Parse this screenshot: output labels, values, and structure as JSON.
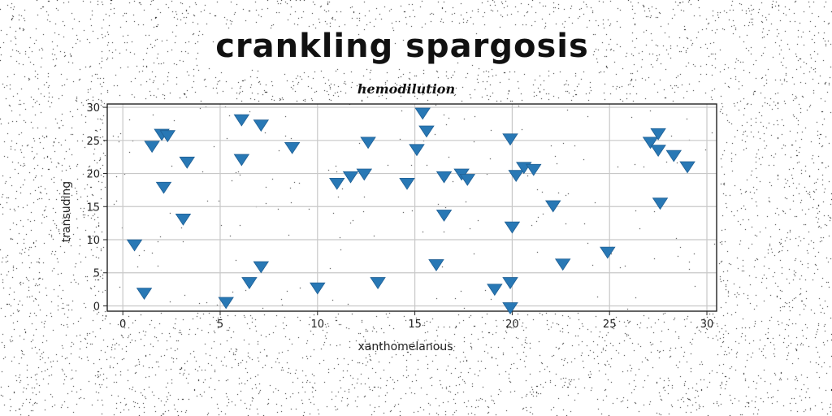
{
  "chart_data": {
    "type": "scatter",
    "title": "crankling spargosis",
    "subtitle": "hemodilution",
    "xlabel": "xanthomelanous",
    "ylabel": "transuding",
    "xlim": [
      -0.8,
      30.5
    ],
    "ylim": [
      -0.8,
      30.5
    ],
    "xticks": [
      0,
      5,
      10,
      15,
      20,
      25,
      30
    ],
    "yticks": [
      0,
      5,
      10,
      15,
      20,
      25,
      30
    ],
    "grid": true,
    "marker": "triangle-down",
    "color": "#2878b5",
    "series": [
      {
        "points": [
          [
            0.6,
            9.3
          ],
          [
            1.1,
            2.0
          ],
          [
            1.5,
            24.2
          ],
          [
            2.0,
            26.0
          ],
          [
            2.3,
            25.8
          ],
          [
            2.1,
            18.0
          ],
          [
            3.3,
            21.8
          ],
          [
            3.1,
            13.2
          ],
          [
            5.3,
            0.6
          ],
          [
            6.1,
            28.2
          ],
          [
            6.1,
            22.2
          ],
          [
            6.5,
            3.6
          ],
          [
            7.1,
            27.4
          ],
          [
            7.1,
            6.0
          ],
          [
            8.7,
            24.0
          ],
          [
            10.0,
            2.8
          ],
          [
            11.0,
            18.6
          ],
          [
            11.7,
            19.6
          ],
          [
            12.4,
            20.0
          ],
          [
            12.6,
            24.8
          ],
          [
            13.1,
            3.6
          ],
          [
            14.6,
            18.6
          ],
          [
            15.1,
            23.7
          ],
          [
            15.4,
            29.2
          ],
          [
            15.6,
            26.5
          ],
          [
            16.1,
            6.3
          ],
          [
            16.5,
            19.6
          ],
          [
            16.5,
            13.8
          ],
          [
            17.4,
            20.0
          ],
          [
            17.7,
            19.2
          ],
          [
            19.1,
            2.6
          ],
          [
            19.9,
            25.3
          ],
          [
            19.9,
            3.6
          ],
          [
            20.0,
            12.0
          ],
          [
            20.2,
            19.8
          ],
          [
            19.9,
            -0.2
          ],
          [
            20.6,
            21.0
          ],
          [
            21.1,
            20.7
          ],
          [
            22.1,
            15.2
          ],
          [
            22.6,
            6.4
          ],
          [
            24.9,
            8.2
          ],
          [
            27.1,
            24.8
          ],
          [
            27.5,
            26.1
          ],
          [
            27.5,
            23.6
          ],
          [
            27.6,
            15.6
          ],
          [
            28.3,
            22.8
          ],
          [
            29.0,
            21.1
          ]
        ]
      }
    ]
  }
}
